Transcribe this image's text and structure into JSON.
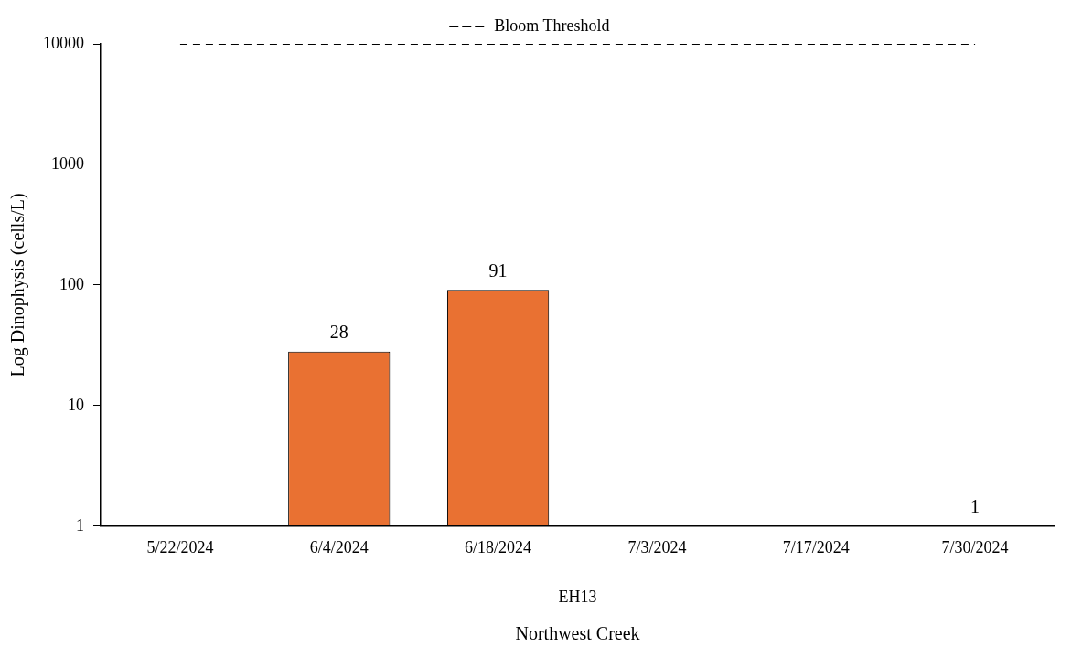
{
  "chart_data": {
    "type": "bar",
    "categories": [
      "5/22/2024",
      "6/4/2024",
      "6/18/2024",
      "7/3/2024",
      "7/17/2024",
      "7/30/2024"
    ],
    "values": [
      null,
      28,
      91,
      null,
      null,
      1
    ],
    "color": "#e97132",
    "data_labels": true,
    "log": "y",
    "ylim": [
      1,
      10000
    ],
    "yticks": [
      1,
      10,
      100,
      1000,
      10000
    ],
    "ylabel": "Log Dinophysis (cells/L)",
    "xlabel": "EH13",
    "annotations": [
      "Northwest Creek"
    ],
    "ref_lines": [
      {
        "axis": "y",
        "value": 10000,
        "label": "Bloom Threshold",
        "color": "#000000",
        "line_style": "dashed"
      }
    ],
    "legend": "top",
    "grid": false
  }
}
